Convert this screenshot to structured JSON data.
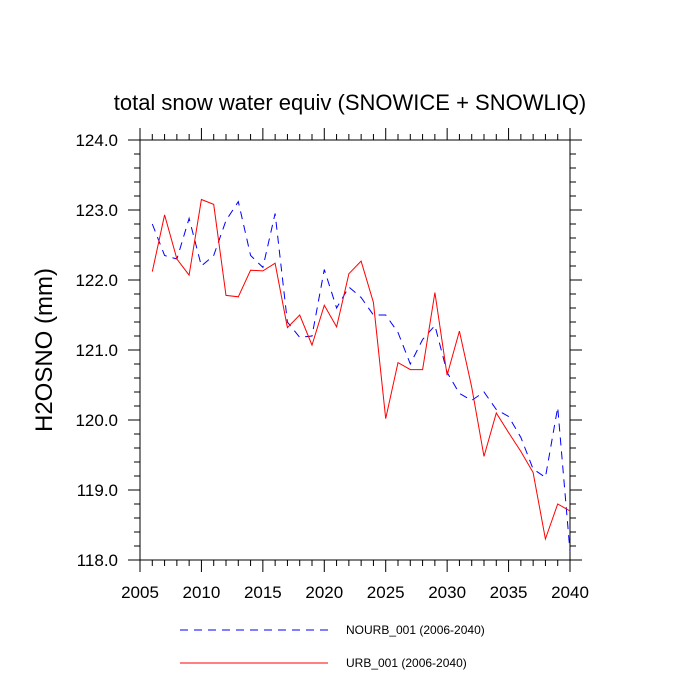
{
  "chart_data": {
    "type": "line",
    "title": "total snow water equiv (SNOWICE + SNOWLIQ)",
    "xlabel": "",
    "ylabel": "H2OSNO  (mm)",
    "xlim": [
      2005,
      2040
    ],
    "ylim": [
      118.0,
      124.0
    ],
    "xticks": [
      2005,
      2010,
      2015,
      2020,
      2025,
      2030,
      2035,
      2040
    ],
    "xtick_labels": [
      "2005",
      "2010",
      "2015",
      "2020",
      "2025",
      "2030",
      "2035",
      "2040"
    ],
    "yticks": [
      118.0,
      119.0,
      120.0,
      121.0,
      122.0,
      123.0,
      124.0
    ],
    "ytick_labels": [
      "118.0",
      "119.0",
      "120.0",
      "121.0",
      "122.0",
      "123.0",
      "124.0"
    ],
    "x": [
      2006,
      2007,
      2008,
      2009,
      2010,
      2011,
      2012,
      2013,
      2014,
      2015,
      2016,
      2017,
      2018,
      2019,
      2020,
      2021,
      2022,
      2023,
      2024,
      2025,
      2026,
      2027,
      2028,
      2029,
      2030,
      2031,
      2032,
      2033,
      2034,
      2035,
      2036,
      2037,
      2038,
      2039,
      2040
    ],
    "series": [
      {
        "name": "NOURB_001 (2006-2040)",
        "color": "#0000ff",
        "style": "dashed",
        "values": [
          122.8,
          122.35,
          122.3,
          122.88,
          122.2,
          122.35,
          122.85,
          123.12,
          122.35,
          122.18,
          122.95,
          121.4,
          121.18,
          121.2,
          122.15,
          121.6,
          121.9,
          121.75,
          121.5,
          121.5,
          121.25,
          120.8,
          121.15,
          121.35,
          120.68,
          120.38,
          120.28,
          120.4,
          120.15,
          120.05,
          119.75,
          119.3,
          119.18,
          120.18,
          118.12
        ]
      },
      {
        "name": "URB_001 (2006-2040)",
        "color": "#ff0000",
        "style": "solid",
        "values": [
          122.12,
          122.93,
          122.3,
          122.07,
          123.15,
          123.08,
          121.78,
          121.76,
          122.14,
          122.13,
          122.24,
          121.32,
          121.5,
          121.07,
          121.64,
          121.33,
          122.09,
          122.27,
          121.68,
          120.02,
          120.82,
          120.72,
          120.72,
          121.82,
          120.64,
          121.27,
          120.47,
          119.48,
          120.1,
          119.82,
          119.55,
          119.25,
          118.3,
          118.8,
          118.7
        ]
      }
    ],
    "legend_position": "bottom"
  }
}
